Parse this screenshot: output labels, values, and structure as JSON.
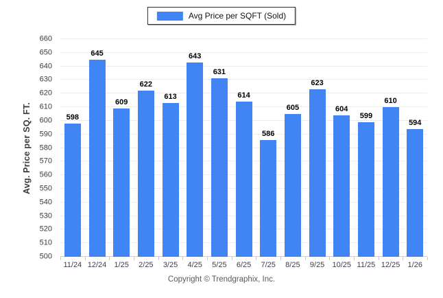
{
  "legend": {
    "label": "Avg Price per SQFT (Sold)"
  },
  "footer": {
    "text": "Copyright © Trendgraphix, Inc."
  },
  "colors": {
    "bar": "#4184f3",
    "grid": "#ececec",
    "axis_line": "#d0d0d0",
    "value_label": "#000000",
    "tick_label": "#3c3c3c",
    "x_label": "#3d3d4d",
    "footer_text": "#595959"
  },
  "chart_data": {
    "type": "bar",
    "title": "Avg Price per SQFT (Sold)",
    "categories": [
      "11/24",
      "12/24",
      "1/25",
      "2/25",
      "3/25",
      "4/25",
      "5/25",
      "6/25",
      "7/25",
      "8/25",
      "9/25",
      "10/25",
      "11/25",
      "12/25",
      "1/26"
    ],
    "values": [
      598,
      645,
      609,
      622,
      613,
      643,
      631,
      614,
      586,
      605,
      623,
      604,
      599,
      610,
      594
    ],
    "xlabel": "",
    "ylabel": "Avg. Price per SQ. FT.",
    "ylim": [
      500,
      660
    ],
    "ytick_step": 10,
    "grid": true,
    "legend_position": "top-center",
    "value_labels": true
  }
}
